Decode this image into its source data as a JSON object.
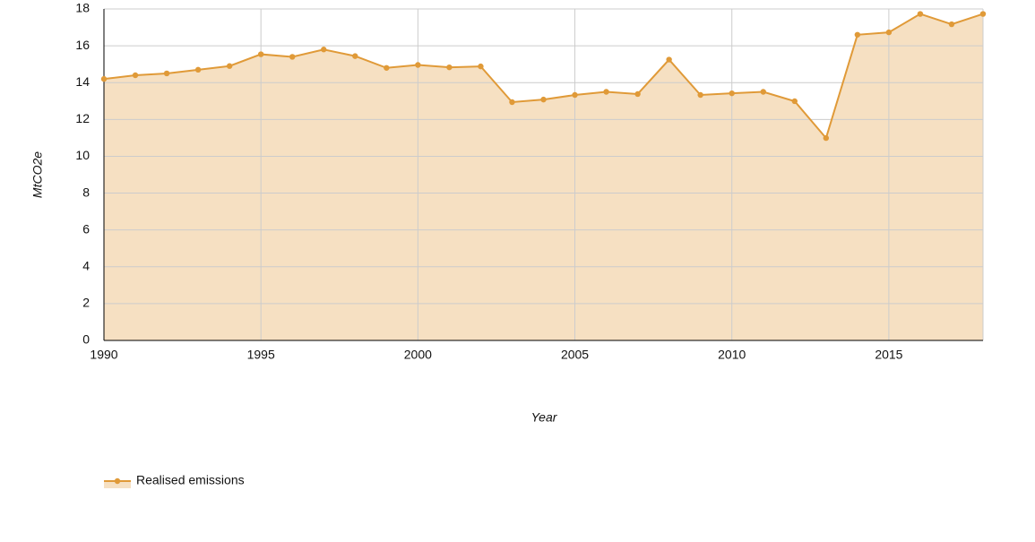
{
  "chart_data": {
    "type": "area",
    "x": [
      1990,
      1991,
      1992,
      1993,
      1994,
      1995,
      1996,
      1997,
      1998,
      1999,
      2000,
      2001,
      2002,
      2003,
      2004,
      2005,
      2006,
      2007,
      2008,
      2009,
      2010,
      2011,
      2012,
      2013,
      2014,
      2015,
      2016,
      2017,
      2018
    ],
    "series": [
      {
        "name": "Realised emissions",
        "color": "#e09a38",
        "fill": "#f6e0c2",
        "values": [
          14.2,
          14.4,
          14.5,
          14.7,
          14.9,
          15.54,
          15.4,
          15.8,
          15.44,
          14.8,
          14.96,
          14.83,
          14.88,
          12.94,
          13.08,
          13.33,
          13.5,
          13.38,
          15.25,
          13.33,
          13.42,
          13.5,
          12.99,
          10.99,
          16.6,
          16.73,
          17.73,
          17.17,
          17.73
        ]
      }
    ],
    "xlim": [
      1990,
      2018
    ],
    "xticks": [
      1990,
      1995,
      2000,
      2005,
      2010,
      2015
    ],
    "ylim": [
      0,
      18
    ],
    "yticks": [
      0,
      2,
      4,
      6,
      8,
      10,
      12,
      14,
      16,
      18
    ],
    "x_label": "Year",
    "y_label": "MtCO2e",
    "grid": true
  }
}
